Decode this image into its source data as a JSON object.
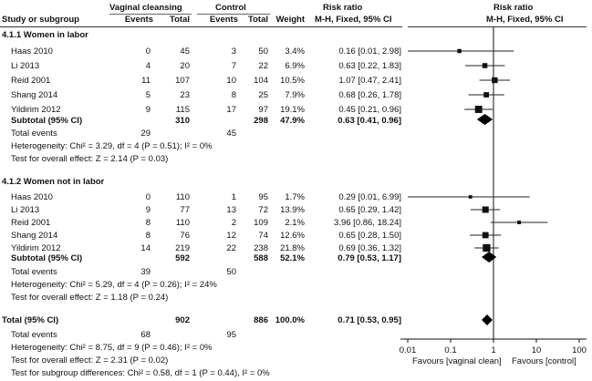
{
  "header": {
    "study_or_subgroup": "Study or subgroup",
    "group1": "Vaginal cleansing",
    "group2": "Control",
    "events": "Events",
    "total": "Total",
    "weight": "Weight",
    "rr_title": "Risk ratio",
    "rr_method": "M-H, Fixed, 95% CI"
  },
  "subgroups": [
    {
      "title": "4.1.1 Women in labor",
      "studies": [
        {
          "study": "Haas 2010",
          "e1": "0",
          "n1": "45",
          "e2": "3",
          "n2": "50",
          "weight": "3.4%",
          "ci": "0.16 [0.01, 2.98]"
        },
        {
          "study": "Li 2013",
          "e1": "4",
          "n1": "20",
          "e2": "7",
          "n2": "22",
          "weight": "6.9%",
          "ci": "0.63 [0.22, 1.83]"
        },
        {
          "study": "Reid 2001",
          "e1": "11",
          "n1": "107",
          "e2": "10",
          "n2": "104",
          "weight": "10.5%",
          "ci": "1.07 [0.47, 2.41]"
        },
        {
          "study": "Shang 2014",
          "e1": "5",
          "n1": "23",
          "e2": "8",
          "n2": "25",
          "weight": "7.9%",
          "ci": "0.68 [0.26, 1.78]"
        },
        {
          "study": "Yildirim 2012",
          "e1": "9",
          "n1": "115",
          "e2": "17",
          "n2": "97",
          "weight": "19.1%",
          "ci": "0.45 [0.21, 0.96]"
        }
      ],
      "subtotal": {
        "label": "Subtotal (95% CI)",
        "n1": "310",
        "n2": "298",
        "weight": "47.9%",
        "ci": "0.63 [0.41, 0.96]"
      },
      "total_events": {
        "label": "Total events",
        "e1": "29",
        "e2": "45"
      },
      "heterogeneity": "Heterogeneity: Chi² = 3.29, df = 4 (P = 0.51); I² = 0%",
      "overall": "Test for overall effect: Z = 2.14 (P = 0.03)"
    },
    {
      "title": "4.1.2 Women not in labor",
      "studies": [
        {
          "study": "Haas 2010",
          "e1": "0",
          "n1": "110",
          "e2": "1",
          "n2": "95",
          "weight": "1.7%",
          "ci": "0.29 [0.01, 6.99]"
        },
        {
          "study": "Li 2013",
          "e1": "9",
          "n1": "77",
          "e2": "13",
          "n2": "72",
          "weight": "13.9%",
          "ci": "0.65 [0.29, 1.42]"
        },
        {
          "study": "Reid 2001",
          "e1": "8",
          "n1": "110",
          "e2": "2",
          "n2": "109",
          "weight": "2.1%",
          "ci": "3.96 [0.86, 18.24]"
        },
        {
          "study": "Shang 2014",
          "e1": "8",
          "n1": "76",
          "e2": "12",
          "n2": "74",
          "weight": "12.6%",
          "ci": "0.65 [0.28, 1.50]"
        },
        {
          "study": "Yildirim 2012",
          "e1": "14",
          "n1": "219",
          "e2": "22",
          "n2": "238",
          "weight": "21.8%",
          "ci": "0.69 [0.36, 1.32]"
        }
      ],
      "subtotal": {
        "label": "Subtotal (95% CI)",
        "n1": "592",
        "n2": "588",
        "weight": "52.1%",
        "ci": "0.79 [0.53, 1.17]"
      },
      "total_events": {
        "label": "Total events",
        "e1": "39",
        "e2": "50"
      },
      "heterogeneity": "Heterogeneity: Chi² = 5.29, df = 4 (P = 0.26); I² = 24%",
      "overall": "Test for overall effect: Z = 1.18 (P = 0.24)"
    }
  ],
  "total": {
    "label": "Total (95% CI)",
    "n1": "902",
    "n2": "886",
    "weight": "100.0%",
    "ci": "0.71 [0.53, 0.95]"
  },
  "total_events": {
    "label": "Total events",
    "e1": "68",
    "e2": "95"
  },
  "heterogeneity": "Heterogeneity: Chi² = 8.75, df = 9 (P = 0.46); I² = 0%",
  "overall": "Test for overall effect: Z = 2.31 (P = 0.02)",
  "subgroup_diff": "Test for subgroup differences: Chi² = 0.58, df = 1 (P = 0.44), I² = 0%",
  "chart_data": {
    "type": "forest",
    "title": "Risk ratio",
    "subtitle": "M-H, Fixed, 95% CI",
    "xscale": "log",
    "xlim": [
      0.01,
      100
    ],
    "ticks": [
      0.01,
      0.1,
      1,
      10,
      100
    ],
    "tick_labels": [
      "0.01",
      "0.1",
      "1",
      "10",
      "100"
    ],
    "xlabel_left": "Favours [vaginal clean]",
    "xlabel_right": "Favours [control]",
    "studies": [
      {
        "group": "4.1.1",
        "study": "Haas 2010",
        "rr": 0.16,
        "lo": 0.01,
        "hi": 2.98,
        "weight": 3.4
      },
      {
        "group": "4.1.1",
        "study": "Li 2013",
        "rr": 0.63,
        "lo": 0.22,
        "hi": 1.83,
        "weight": 6.9
      },
      {
        "group": "4.1.1",
        "study": "Reid 2001",
        "rr": 1.07,
        "lo": 0.47,
        "hi": 2.41,
        "weight": 10.5
      },
      {
        "group": "4.1.1",
        "study": "Shang 2014",
        "rr": 0.68,
        "lo": 0.26,
        "hi": 1.78,
        "weight": 7.9
      },
      {
        "group": "4.1.1",
        "study": "Yildirim 2012",
        "rr": 0.45,
        "lo": 0.21,
        "hi": 0.96,
        "weight": 19.1
      },
      {
        "group": "4.1.2",
        "study": "Haas 2010",
        "rr": 0.29,
        "lo": 0.01,
        "hi": 6.99,
        "weight": 1.7
      },
      {
        "group": "4.1.2",
        "study": "Li 2013",
        "rr": 0.65,
        "lo": 0.29,
        "hi": 1.42,
        "weight": 13.9
      },
      {
        "group": "4.1.2",
        "study": "Reid 2001",
        "rr": 3.96,
        "lo": 0.86,
        "hi": 18.24,
        "weight": 2.1
      },
      {
        "group": "4.1.2",
        "study": "Shang 2014",
        "rr": 0.65,
        "lo": 0.28,
        "hi": 1.5,
        "weight": 12.6
      },
      {
        "group": "4.1.2",
        "study": "Yildirim 2012",
        "rr": 0.69,
        "lo": 0.36,
        "hi": 1.32,
        "weight": 21.8
      }
    ],
    "pooled": [
      {
        "label": "Subtotal 4.1.1",
        "rr": 0.63,
        "lo": 0.41,
        "hi": 0.96
      },
      {
        "label": "Subtotal 4.1.2",
        "rr": 0.79,
        "lo": 0.53,
        "hi": 1.17
      },
      {
        "label": "Total",
        "rr": 0.71,
        "lo": 0.53,
        "hi": 0.95
      }
    ]
  }
}
